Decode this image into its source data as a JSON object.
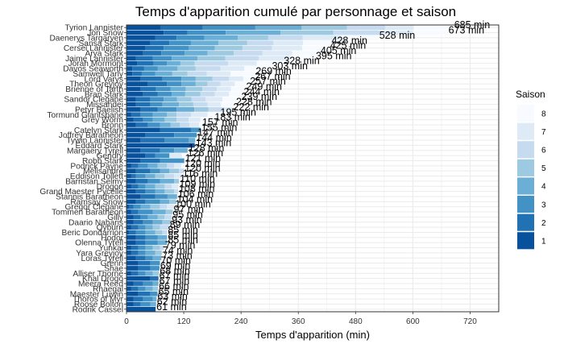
{
  "chart_data": {
    "type": "bar",
    "orientation": "horizontal",
    "stacked": true,
    "title": "Temps d'apparition cumulé par personnage et saison",
    "xlabel": "Temps d'apparition (min)",
    "ylabel": "",
    "xlim": [
      0,
      780
    ],
    "xticks": [
      0,
      120,
      240,
      360,
      480,
      600,
      720
    ],
    "grid": true,
    "legend": {
      "title": "Saison",
      "position": "right",
      "entries": [
        "8",
        "7",
        "6",
        "5",
        "4",
        "3",
        "2",
        "1"
      ]
    },
    "season_colors": [
      "#08519c",
      "#2171b5",
      "#4292c6",
      "#6baed6",
      "#9ecae1",
      "#c6dbef",
      "#deebf7",
      "#f7fbff"
    ],
    "characters": [
      "Tyrion Lannister",
      "Jon Snow",
      "Daenerys Targaryen",
      "Sansa Stark",
      "Cersei Lannister",
      "Arya Stark",
      "Jaime Lannister",
      "Jorah Mormont",
      "Davos Seaworth",
      "Samwell Tarly",
      "Lord Varys",
      "Theon Greyjoy",
      "Brienne of Tarth",
      "Bran Stark",
      "Sandor Clegane",
      "Missandei",
      "Petyr Baelish",
      "Tormund Giantsbane",
      "Grey Worm",
      "Bronn",
      "Catelyn Stark",
      "Joffrey Baratheon",
      "Tywin Lannister",
      "Eddard Stark",
      "Margaery Tyrell",
      "Gendry",
      "Robb Stark",
      "Podrick Payne",
      "Melisandre",
      "Eddison Tollett",
      "Barristan Selmy",
      "Drogon",
      "Grand Maester Pycelle",
      "Stannis Baratheon",
      "Ramsay Snow",
      "Gregor Clegane",
      "Tommen Baratheon",
      "Gilly",
      "Daario Naharis",
      "Qyburn",
      "Beric Dondarrion",
      "Hodor",
      "Olenna Tyrell",
      "Yunkai",
      "Yara Greyjoy",
      "Loras Tyrell",
      "Grenn",
      "Shae",
      "Alliser Thorne",
      "Khal Drogo",
      "Meera Reed",
      "Rhaegal",
      "Maester Luwin",
      "Thoros of Myr",
      "Roose Bolton",
      "Rodrik Cassel"
    ],
    "totals": [
      685,
      673,
      528,
      428,
      425,
      405,
      395,
      328,
      303,
      269,
      267,
      257,
      249,
      244,
      239,
      228,
      222,
      195,
      183,
      157,
      155,
      147,
      144,
      143,
      128,
      126,
      121,
      120,
      120,
      116,
      110,
      109,
      108,
      106,
      104,
      100,
      97,
      95,
      93,
      89,
      85,
      85,
      85,
      79,
      74,
      73,
      70,
      69,
      68,
      67,
      67,
      66,
      65,
      63,
      62,
      61
    ],
    "stacks": [
      [
        72,
        88,
        110,
        97,
        95,
        80,
        60,
        83
      ],
      [
        78,
        50,
        80,
        115,
        110,
        97,
        70,
        73
      ],
      [
        60,
        45,
        58,
        70,
        64,
        72,
        80,
        79
      ],
      [
        50,
        40,
        45,
        58,
        60,
        55,
        62,
        58
      ],
      [
        40,
        38,
        52,
        55,
        58,
        62,
        63,
        57
      ],
      [
        35,
        38,
        49,
        48,
        55,
        60,
        62,
        58
      ],
      [
        20,
        35,
        40,
        54,
        58,
        70,
        66,
        52
      ],
      [
        22,
        35,
        28,
        28,
        30,
        70,
        60,
        55
      ],
      [
        12,
        25,
        28,
        42,
        38,
        52,
        50,
        56
      ],
      [
        12,
        20,
        28,
        36,
        32,
        40,
        50,
        51
      ],
      [
        30,
        45,
        40,
        30,
        35,
        35,
        30,
        22
      ],
      [
        45,
        40,
        30,
        30,
        25,
        27,
        30,
        30
      ],
      [
        30,
        32,
        30,
        32,
        35,
        30,
        30,
        30
      ],
      [
        35,
        30,
        30,
        28,
        32,
        30,
        30,
        29
      ],
      [
        20,
        30,
        28,
        28,
        30,
        30,
        35,
        38
      ],
      [
        20,
        30,
        25,
        35,
        30,
        30,
        28,
        30
      ],
      [
        30,
        35,
        40,
        37,
        30,
        30,
        20,
        0
      ],
      [
        10,
        20,
        25,
        30,
        20,
        30,
        35,
        25
      ],
      [
        15,
        20,
        20,
        25,
        25,
        25,
        25,
        28
      ],
      [
        20,
        25,
        25,
        22,
        20,
        20,
        20,
        5
      ],
      [
        70,
        65,
        20,
        0,
        0,
        0,
        0,
        0
      ],
      [
        40,
        60,
        47,
        0,
        0,
        0,
        0,
        0
      ],
      [
        30,
        50,
        50,
        14,
        0,
        0,
        0,
        0
      ],
      [
        143,
        0,
        0,
        0,
        0,
        0,
        0,
        0
      ],
      [
        30,
        40,
        30,
        28,
        0,
        0,
        0,
        0
      ],
      [
        40,
        20,
        30,
        0,
        0,
        0,
        26,
        10
      ],
      [
        30,
        40,
        51,
        0,
        0,
        0,
        0,
        0
      ],
      [
        10,
        15,
        20,
        20,
        20,
        15,
        15,
        5
      ],
      [
        20,
        30,
        20,
        20,
        20,
        10,
        0,
        0
      ],
      [
        10,
        10,
        20,
        20,
        20,
        20,
        16,
        0
      ],
      [
        20,
        25,
        25,
        30,
        10,
        0,
        0,
        0
      ],
      [
        10,
        15,
        15,
        20,
        20,
        15,
        14,
        0
      ],
      [
        20,
        20,
        20,
        20,
        20,
        8,
        0,
        0
      ],
      [
        30,
        30,
        26,
        20,
        0,
        0,
        0,
        0
      ],
      [
        20,
        20,
        30,
        20,
        14,
        0,
        0,
        0
      ],
      [
        5,
        10,
        15,
        20,
        20,
        15,
        15,
        0
      ],
      [
        10,
        15,
        30,
        27,
        15,
        0,
        0,
        0
      ],
      [
        15,
        15,
        15,
        20,
        15,
        15,
        0,
        0
      ],
      [
        15,
        20,
        20,
        20,
        18,
        0,
        0,
        0
      ],
      [
        10,
        15,
        15,
        15,
        15,
        19,
        0,
        0
      ],
      [
        5,
        15,
        20,
        20,
        15,
        10,
        0,
        0
      ],
      [
        20,
        20,
        25,
        20,
        0,
        0,
        0,
        0
      ],
      [
        20,
        20,
        25,
        20,
        0,
        0,
        0,
        0
      ],
      [
        10,
        15,
        15,
        15,
        15,
        9,
        0,
        0
      ],
      [
        10,
        15,
        15,
        20,
        14,
        0,
        0,
        0
      ],
      [
        20,
        20,
        15,
        18,
        0,
        0,
        0,
        0
      ],
      [
        25,
        25,
        20,
        0,
        0,
        0,
        0,
        0
      ],
      [
        25,
        25,
        19,
        0,
        0,
        0,
        0,
        0
      ],
      [
        10,
        15,
        15,
        15,
        13,
        0,
        0,
        0
      ],
      [
        50,
        17,
        0,
        0,
        0,
        0,
        0,
        0
      ],
      [
        15,
        20,
        20,
        12,
        0,
        0,
        0,
        0
      ],
      [
        10,
        15,
        15,
        15,
        11,
        0,
        0,
        0
      ],
      [
        25,
        25,
        15,
        0,
        0,
        0,
        0,
        0
      ],
      [
        15,
        20,
        20,
        8,
        0,
        0,
        0,
        0
      ],
      [
        15,
        15,
        20,
        12,
        0,
        0,
        0,
        0
      ],
      [
        61,
        0,
        0,
        0,
        0,
        0,
        0,
        0
      ]
    ],
    "value_label_suffix": " min"
  }
}
